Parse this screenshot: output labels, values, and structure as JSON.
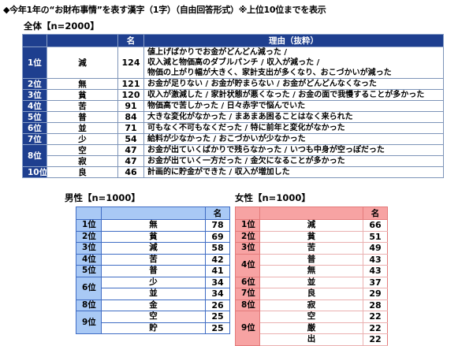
{
  "title": "◆今年1年の“お財布事情”を表す漢字（1字）（自由回答形式）※上位10位までを表示",
  "overall": {
    "label": "全体【n=2000】",
    "headers": {
      "rank": "",
      "kanji": "",
      "count": "名",
      "reason": "理由（抜粋）"
    },
    "rows": [
      {
        "rank": "1位",
        "span": 1,
        "kanji": "減",
        "count": "124",
        "reason": [
          "値上げばかりでお金がどんどん減った /",
          "収入減と物価高のダブルパンチ / 収入が減った /",
          "物価の上がり幅が大きく、家計支出が多くなり、おこづかいが減った"
        ]
      },
      {
        "rank": "2位",
        "span": 1,
        "kanji": "無",
        "count": "121",
        "reason": [
          "お金が足りない / お金が貯まらない / お金がどんどんなくなった"
        ]
      },
      {
        "rank": "3位",
        "span": 1,
        "kanji": "貧",
        "count": "120",
        "reason": [
          "収入が激減した / 家計状態が悪くなった / お金の面で我慢することが多かった"
        ]
      },
      {
        "rank": "4位",
        "span": 1,
        "kanji": "苦",
        "count": "91",
        "reason": [
          "物価高で苦しかった / 日々赤字で悩んでいた"
        ]
      },
      {
        "rank": "5位",
        "span": 1,
        "kanji": "普",
        "count": "84",
        "reason": [
          "大きな変化がなかった / まあまあ困ることはなく来られた"
        ]
      },
      {
        "rank": "6位",
        "span": 1,
        "kanji": "並",
        "count": "71",
        "reason": [
          "可もなく不可もなくだった / 特に前年と変化がなかった"
        ]
      },
      {
        "rank": "7位",
        "span": 1,
        "kanji": "少",
        "count": "54",
        "reason": [
          "給料が少なかった / おこづかいが少なかった"
        ]
      },
      {
        "rank": "8位",
        "span": 2,
        "kanji": "空",
        "count": "47",
        "reason": [
          "お金が出ていくばかりで残らなかった / いつも中身が空っぽだった"
        ]
      },
      {
        "rank": "",
        "span": 0,
        "kanji": "寂",
        "count": "47",
        "reason": [
          "お金が出ていく一方だった / 金欠になることが多かった"
        ]
      },
      {
        "rank": "10位",
        "span": 1,
        "kanji": "良",
        "count": "46",
        "reason": [
          "計画的に貯金ができた / 収入が増加した"
        ]
      }
    ]
  },
  "male": {
    "label": "男性【n=1000】",
    "headers": {
      "rank": "",
      "kanji": "",
      "count": "名"
    },
    "rows": [
      {
        "rank": "1位",
        "span": 1,
        "kanji": "無",
        "count": "78"
      },
      {
        "rank": "2位",
        "span": 1,
        "kanji": "貧",
        "count": "69"
      },
      {
        "rank": "3位",
        "span": 1,
        "kanji": "減",
        "count": "58"
      },
      {
        "rank": "4位",
        "span": 1,
        "kanji": "苦",
        "count": "42"
      },
      {
        "rank": "5位",
        "span": 1,
        "kanji": "普",
        "count": "41"
      },
      {
        "rank": "6位",
        "span": 2,
        "kanji": "少",
        "count": "34"
      },
      {
        "rank": "",
        "span": 0,
        "kanji": "並",
        "count": "34"
      },
      {
        "rank": "8位",
        "span": 1,
        "kanji": "金",
        "count": "26"
      },
      {
        "rank": "9位",
        "span": 2,
        "kanji": "空",
        "count": "25"
      },
      {
        "rank": "",
        "span": 0,
        "kanji": "貯",
        "count": "25"
      }
    ]
  },
  "female": {
    "label": "女性【n=1000】",
    "headers": {
      "rank": "",
      "kanji": "",
      "count": "名"
    },
    "rows": [
      {
        "rank": "1位",
        "span": 1,
        "kanji": "減",
        "count": "66"
      },
      {
        "rank": "2位",
        "span": 1,
        "kanji": "貧",
        "count": "51"
      },
      {
        "rank": "3位",
        "span": 1,
        "kanji": "苦",
        "count": "49"
      },
      {
        "rank": "4位",
        "span": 2,
        "kanji": "普",
        "count": "43"
      },
      {
        "rank": "",
        "span": 0,
        "kanji": "無",
        "count": "43"
      },
      {
        "rank": "6位",
        "span": 1,
        "kanji": "並",
        "count": "37"
      },
      {
        "rank": "7位",
        "span": 1,
        "kanji": "良",
        "count": "29"
      },
      {
        "rank": "8位",
        "span": 1,
        "kanji": "寂",
        "count": "28"
      },
      {
        "rank": "9位",
        "span": 3,
        "kanji": "空",
        "count": "22"
      },
      {
        "rank": "",
        "span": 0,
        "kanji": "厳",
        "count": "22"
      },
      {
        "rank": "",
        "span": 0,
        "kanji": "出",
        "count": "22"
      }
    ]
  },
  "colors": {
    "overall_header": "#1e3f8f",
    "male_accent": "#a9c9f5",
    "female_accent": "#f7a3a3"
  }
}
